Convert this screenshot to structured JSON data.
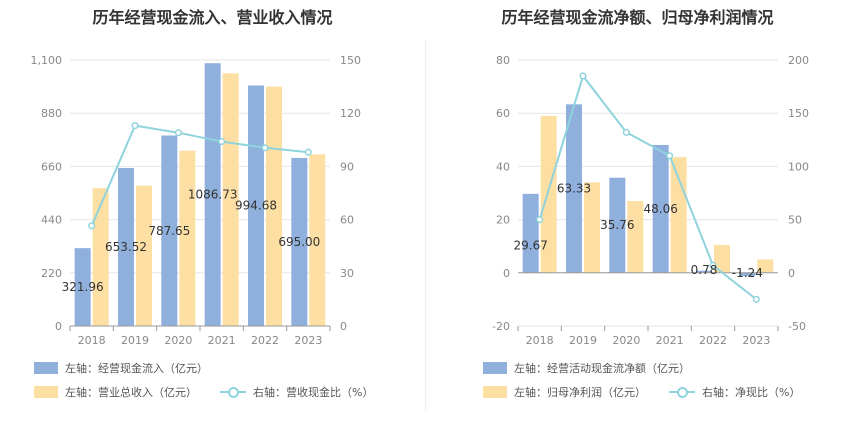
{
  "chart_data": [
    {
      "type": "bar",
      "title": "历年经营现金流入、营业收入情况",
      "categories": [
        "2018",
        "2019",
        "2020",
        "2021",
        "2022",
        "2023"
      ],
      "y_left": {
        "ticks": [
          "0",
          "220",
          "440",
          "660",
          "880",
          "1,100"
        ],
        "ylim": [
          0,
          1100
        ]
      },
      "y_right": {
        "ticks": [
          "0",
          "30",
          "60",
          "90",
          "120",
          "150"
        ],
        "ylim": [
          0,
          150
        ]
      },
      "series": [
        {
          "name": "经营现金流入",
          "legend": "左轴：经营现金流入（亿元）",
          "axis": "left",
          "kind": "bar",
          "color": "#8fb0dd",
          "values": [
            321.96,
            653.52,
            787.65,
            1086.73,
            994.68,
            695.0
          ],
          "labels": [
            "321.96",
            "653.52",
            "787.65",
            "1086.73",
            "994.68",
            "695.00"
          ]
        },
        {
          "name": "营业总收入",
          "legend": "左轴：营业总收入（亿元）",
          "axis": "left",
          "kind": "bar",
          "color": "#fedfa3",
          "values": [
            570,
            580,
            725,
            1045,
            990,
            710
          ]
        },
        {
          "name": "营收现金比",
          "legend": "右轴：营收现金比（%）",
          "axis": "right",
          "kind": "line",
          "color": "#8fd3dc",
          "values": [
            56.5,
            113,
            109,
            104,
            100.5,
            98
          ]
        }
      ]
    },
    {
      "type": "bar",
      "title": "历年经营现金流净额、归母净利润情况",
      "categories": [
        "2018",
        "2019",
        "2020",
        "2021",
        "2022",
        "2023"
      ],
      "y_left": {
        "ticks": [
          "-20",
          "0",
          "20",
          "40",
          "60",
          "80"
        ],
        "ylim": [
          -20,
          80
        ]
      },
      "y_right": {
        "ticks": [
          "-50",
          "0",
          "50",
          "100",
          "150",
          "200"
        ],
        "ylim": [
          -50,
          200
        ]
      },
      "series": [
        {
          "name": "经营活动现金流净额",
          "legend": "左轴：经营活动现金流净额（亿元）",
          "axis": "left",
          "kind": "bar",
          "color": "#8fb0dd",
          "values": [
            29.67,
            63.33,
            35.76,
            48.06,
            0.78,
            -1.24
          ],
          "labels": [
            "29.67",
            "63.33",
            "35.76",
            "48.06",
            "0.78",
            "-1.24"
          ]
        },
        {
          "name": "归母净利润",
          "legend": "左轴：归母净利润（亿元）",
          "axis": "left",
          "kind": "bar",
          "color": "#fedfa3",
          "values": [
            59,
            34,
            27,
            43.5,
            10.5,
            5
          ]
        },
        {
          "name": "净现比",
          "legend": "右轴：净现比（%）",
          "axis": "right",
          "kind": "line",
          "color": "#8fd3dc",
          "values": [
            50,
            185,
            132,
            110,
            7,
            -25
          ]
        }
      ]
    }
  ]
}
